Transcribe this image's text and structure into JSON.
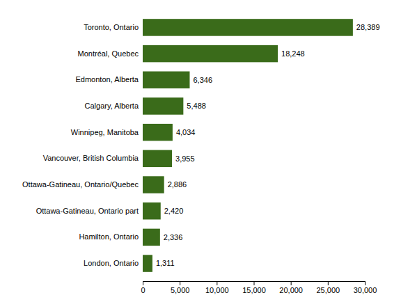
{
  "chart_data": {
    "type": "bar",
    "orientation": "horizontal",
    "categories": [
      "London, Ontario",
      "Hamilton, Ontario",
      "Ottawa-Gatineau, Ontario part",
      "Ottawa-Gatineau, Ontario/Quebec",
      "Vancouver, British Columbia",
      "Winnipeg, Manitoba",
      "Calgary, Alberta",
      "Edmonton, Alberta",
      "Montréal, Quebec",
      "Toronto, Ontario"
    ],
    "values": [
      1311,
      2336,
      2420,
      2886,
      3955,
      4034,
      5488,
      6346,
      18248,
      28389
    ],
    "value_labels": [
      "1,311",
      "2,336",
      "2,420",
      "2,886",
      "3,955",
      "4,034",
      "5,488",
      "6,346",
      "18,248",
      "28,389"
    ],
    "data_labels": true,
    "color": "#3a6b1a",
    "xlim": [
      0,
      30000
    ],
    "xticks": [
      0,
      {
        "value": 5000,
        "label": "5,000"
      },
      {
        "value": 10000,
        "label": "10,000"
      },
      {
        "value": 15000,
        "label": "15,000"
      },
      {
        "value": 20000,
        "label": "20,000"
      },
      {
        "value": 25000,
        "label": "25,000"
      },
      {
        "value": 30000,
        "label": "30,000"
      }
    ],
    "grid": false
  }
}
